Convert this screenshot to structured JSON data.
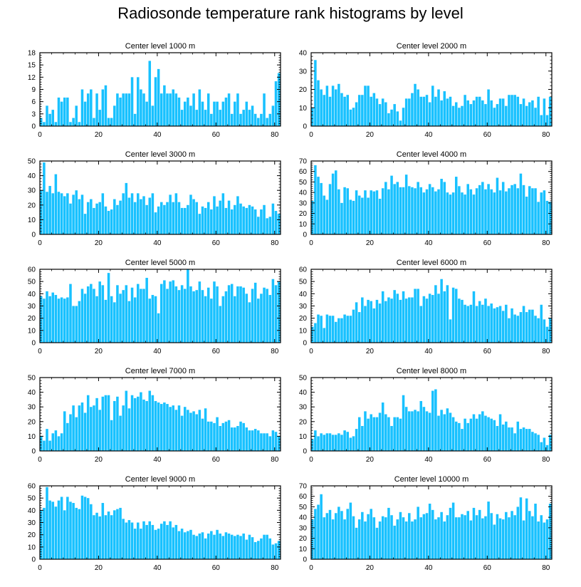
{
  "title": "Radiosonde temperature rank histograms by level",
  "colors": {
    "bar": "#18c1ff",
    "bar_edge": "#ffffff",
    "axis": "#000000"
  },
  "chart_data": [
    {
      "type": "bar",
      "title": "Center level 1000 m",
      "xlim": [
        0,
        82
      ],
      "ylim": [
        0,
        18
      ],
      "xticks": [
        0,
        20,
        40,
        60,
        80
      ],
      "yticks": [
        0,
        3,
        6,
        9,
        12,
        15,
        18
      ],
      "xlabel": "",
      "ylabel": "",
      "values": [
        2,
        1,
        5,
        3,
        4,
        1,
        7,
        6,
        7,
        7,
        1,
        2,
        5,
        1,
        9,
        6,
        8,
        9,
        2,
        8,
        4,
        9,
        10,
        2,
        2,
        5,
        8,
        7,
        8,
        8,
        8,
        12,
        3,
        12,
        9,
        8,
        6,
        16,
        5,
        12,
        14,
        8,
        10,
        8,
        8,
        9,
        8,
        7,
        4,
        6,
        7,
        5,
        8,
        4,
        9,
        6,
        4,
        8,
        3,
        6,
        6,
        4,
        6,
        7,
        8,
        3,
        6,
        8,
        3,
        4,
        6,
        4,
        5,
        3,
        2,
        3,
        8,
        2,
        3,
        5,
        11,
        13
      ]
    },
    {
      "type": "bar",
      "title": "Center level 2000 m",
      "xlim": [
        0,
        82
      ],
      "ylim": [
        0,
        40
      ],
      "xticks": [
        0,
        20,
        40,
        60,
        80
      ],
      "yticks": [
        0,
        10,
        20,
        30,
        40
      ],
      "xlabel": "",
      "ylabel": "",
      "values": [
        10,
        36,
        25,
        20,
        17,
        22,
        16,
        22,
        20,
        23,
        18,
        16,
        17,
        9,
        10,
        13,
        17,
        17,
        22,
        22,
        16,
        18,
        15,
        12,
        15,
        13,
        7,
        9,
        12,
        8,
        3,
        10,
        15,
        15,
        18,
        23,
        20,
        16,
        16,
        17,
        13,
        22,
        16,
        20,
        14,
        19,
        15,
        16,
        11,
        13,
        10,
        11,
        17,
        14,
        12,
        14,
        16,
        16,
        14,
        12,
        20,
        14,
        10,
        12,
        15,
        15,
        11,
        17,
        17,
        17,
        16,
        12,
        15,
        11,
        13,
        14,
        10,
        16,
        6,
        15,
        6,
        16
      ]
    },
    {
      "type": "bar",
      "title": "Center level 3000 m",
      "xlim": [
        0,
        82
      ],
      "ylim": [
        0,
        50
      ],
      "xticks": [
        0,
        20,
        40,
        60,
        80
      ],
      "yticks": [
        0,
        10,
        20,
        30,
        40,
        50
      ],
      "xlabel": "",
      "ylabel": "",
      "values": [
        30,
        49,
        29,
        33,
        28,
        41,
        29,
        28,
        26,
        28,
        21,
        27,
        30,
        24,
        27,
        14,
        22,
        24,
        18,
        21,
        22,
        28,
        19,
        16,
        17,
        24,
        20,
        23,
        28,
        35,
        25,
        28,
        22,
        28,
        24,
        26,
        20,
        25,
        28,
        15,
        19,
        22,
        20,
        22,
        27,
        22,
        28,
        22,
        18,
        18,
        20,
        27,
        24,
        22,
        14,
        19,
        18,
        22,
        17,
        26,
        19,
        23,
        28,
        18,
        23,
        17,
        20,
        26,
        21,
        19,
        18,
        20,
        19,
        17,
        12,
        17,
        20,
        11,
        12,
        21,
        16,
        14
      ]
    },
    {
      "type": "bar",
      "title": "Center level 4000 m",
      "xlim": [
        0,
        82
      ],
      "ylim": [
        0,
        70
      ],
      "xticks": [
        0,
        20,
        40,
        60,
        80
      ],
      "yticks": [
        0,
        10,
        20,
        30,
        40,
        50,
        60,
        70
      ],
      "xlabel": "",
      "ylabel": "",
      "values": [
        32,
        66,
        55,
        49,
        37,
        33,
        48,
        58,
        61,
        43,
        30,
        45,
        44,
        33,
        32,
        42,
        37,
        35,
        42,
        35,
        42,
        41,
        42,
        34,
        44,
        50,
        43,
        56,
        48,
        50,
        45,
        45,
        57,
        46,
        45,
        44,
        50,
        45,
        40,
        43,
        48,
        45,
        41,
        43,
        53,
        50,
        40,
        38,
        40,
        55,
        46,
        40,
        38,
        48,
        43,
        38,
        44,
        47,
        50,
        43,
        48,
        43,
        40,
        54,
        42,
        50,
        41,
        44,
        47,
        48,
        44,
        58,
        47,
        36,
        46,
        44,
        44,
        31,
        40,
        42,
        32,
        31
      ]
    },
    {
      "type": "bar",
      "title": "Center level 5000 m",
      "xlim": [
        0,
        82
      ],
      "ylim": [
        0,
        60
      ],
      "xticks": [
        0,
        20,
        40,
        60,
        80
      ],
      "yticks": [
        0,
        10,
        20,
        30,
        40,
        50,
        60
      ],
      "xlabel": "",
      "ylabel": "",
      "values": [
        38,
        36,
        42,
        38,
        41,
        39,
        36,
        37,
        36,
        37,
        48,
        30,
        30,
        34,
        44,
        40,
        46,
        48,
        44,
        38,
        50,
        47,
        35,
        57,
        38,
        33,
        47,
        40,
        43,
        47,
        34,
        45,
        37,
        48,
        44,
        44,
        53,
        36,
        39,
        38,
        24,
        48,
        51,
        44,
        50,
        51,
        46,
        43,
        47,
        44,
        60,
        46,
        42,
        43,
        50,
        43,
        38,
        45,
        36,
        50,
        46,
        30,
        38,
        42,
        47,
        48,
        38,
        46,
        46,
        45,
        40,
        33,
        44,
        49,
        36,
        40,
        45,
        44,
        39,
        52,
        47,
        50
      ]
    },
    {
      "type": "bar",
      "title": "Center level 6000 m",
      "xlim": [
        0,
        82
      ],
      "ylim": [
        0,
        60
      ],
      "xticks": [
        0,
        20,
        40,
        60,
        80
      ],
      "yticks": [
        0,
        10,
        20,
        30,
        40,
        50,
        60
      ],
      "xlabel": "",
      "ylabel": "",
      "values": [
        13,
        16,
        23,
        22,
        12,
        23,
        22,
        22,
        17,
        20,
        20,
        23,
        22,
        22,
        27,
        33,
        25,
        37,
        30,
        35,
        34,
        28,
        35,
        32,
        42,
        34,
        37,
        36,
        43,
        40,
        35,
        42,
        36,
        37,
        37,
        44,
        44,
        30,
        38,
        36,
        40,
        39,
        47,
        40,
        52,
        42,
        47,
        19,
        45,
        44,
        36,
        35,
        31,
        30,
        31,
        42,
        30,
        34,
        31,
        36,
        30,
        32,
        28,
        29,
        30,
        26,
        31,
        20,
        28,
        23,
        22,
        25,
        30,
        25,
        27,
        27,
        22,
        20,
        31,
        19,
        13,
        20
      ]
    },
    {
      "type": "bar",
      "title": "Center level 7000 m",
      "xlim": [
        0,
        82
      ],
      "ylim": [
        0,
        50
      ],
      "xticks": [
        0,
        20,
        40,
        60,
        80
      ],
      "yticks": [
        0,
        10,
        20,
        30,
        40,
        50
      ],
      "xlabel": "",
      "ylabel": "",
      "values": [
        10,
        7,
        15,
        7,
        12,
        14,
        10,
        12,
        27,
        19,
        25,
        31,
        23,
        31,
        33,
        26,
        38,
        30,
        31,
        36,
        28,
        37,
        38,
        38,
        21,
        34,
        37,
        24,
        31,
        41,
        29,
        38,
        36,
        37,
        40,
        35,
        34,
        41,
        38,
        34,
        33,
        32,
        33,
        32,
        30,
        31,
        28,
        31,
        24,
        30,
        28,
        26,
        27,
        25,
        28,
        22,
        29,
        20,
        20,
        19,
        23,
        17,
        19,
        20,
        21,
        16,
        16,
        17,
        20,
        19,
        16,
        14,
        14,
        15,
        14,
        12,
        12,
        12,
        10,
        14,
        13,
        10
      ]
    },
    {
      "type": "bar",
      "title": "Center level 8000 m",
      "xlim": [
        0,
        82
      ],
      "ylim": [
        0,
        50
      ],
      "xticks": [
        0,
        20,
        40,
        60,
        80
      ],
      "yticks": [
        0,
        10,
        20,
        30,
        40,
        50
      ],
      "xlabel": "",
      "ylabel": "",
      "values": [
        8,
        14,
        10,
        12,
        11,
        12,
        12,
        11,
        11,
        12,
        11,
        14,
        13,
        9,
        10,
        15,
        23,
        17,
        27,
        22,
        25,
        23,
        23,
        26,
        33,
        25,
        23,
        17,
        23,
        23,
        22,
        38,
        30,
        27,
        27,
        28,
        27,
        34,
        30,
        27,
        26,
        41,
        42,
        24,
        28,
        25,
        29,
        26,
        23,
        20,
        19,
        15,
        22,
        19,
        22,
        25,
        22,
        25,
        27,
        24,
        23,
        22,
        21,
        17,
        25,
        18,
        20,
        16,
        16,
        12,
        20,
        15,
        16,
        15,
        15,
        13,
        12,
        11,
        6,
        9,
        4,
        11
      ]
    },
    {
      "type": "bar",
      "title": "Center level 9000 m",
      "xlim": [
        0,
        82
      ],
      "ylim": [
        0,
        60
      ],
      "xticks": [
        0,
        20,
        40,
        60,
        80
      ],
      "yticks": [
        0,
        10,
        20,
        30,
        40,
        50,
        60
      ],
      "xlabel": "",
      "ylabel": "",
      "values": [
        40,
        42,
        59,
        48,
        47,
        43,
        48,
        51,
        40,
        51,
        47,
        46,
        42,
        41,
        52,
        51,
        50,
        45,
        36,
        38,
        35,
        46,
        36,
        39,
        36,
        40,
        41,
        42,
        33,
        30,
        32,
        30,
        25,
        30,
        25,
        31,
        28,
        31,
        28,
        24,
        25,
        29,
        31,
        28,
        31,
        26,
        28,
        23,
        25,
        22,
        23,
        24,
        20,
        19,
        21,
        22,
        17,
        21,
        23,
        20,
        24,
        21,
        19,
        22,
        21,
        20,
        19,
        20,
        19,
        21,
        16,
        20,
        18,
        14,
        15,
        17,
        20,
        20,
        17,
        12,
        13,
        15
      ]
    },
    {
      "type": "bar",
      "title": "Center level 10000 m",
      "xlim": [
        0,
        82
      ],
      "ylim": [
        0,
        70
      ],
      "xticks": [
        0,
        20,
        40,
        60,
        80
      ],
      "yticks": [
        0,
        10,
        20,
        30,
        40,
        50,
        60,
        70
      ],
      "xlabel": "",
      "ylabel": "",
      "values": [
        38,
        48,
        52,
        62,
        40,
        44,
        47,
        38,
        44,
        50,
        46,
        38,
        48,
        54,
        41,
        30,
        38,
        45,
        36,
        43,
        48,
        40,
        30,
        36,
        41,
        40,
        49,
        42,
        32,
        38,
        45,
        40,
        36,
        44,
        36,
        38,
        50,
        40,
        43,
        44,
        53,
        47,
        38,
        40,
        45,
        36,
        42,
        49,
        54,
        40,
        40,
        43,
        42,
        46,
        37,
        49,
        42,
        47,
        39,
        41,
        55,
        44,
        33,
        43,
        39,
        38,
        45,
        40,
        46,
        42,
        50,
        59,
        37,
        58,
        46,
        41,
        53,
        36,
        42,
        35,
        38,
        53
      ]
    }
  ]
}
